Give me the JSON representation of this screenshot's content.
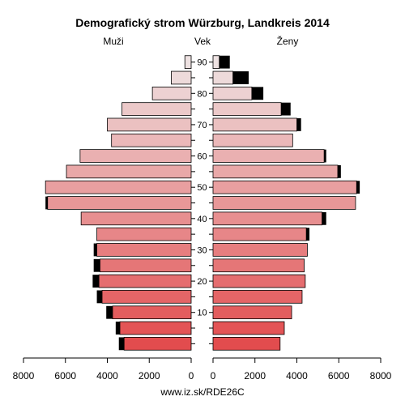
{
  "chart_data": {
    "type": "bar",
    "title": "Demografický strom Würzburg, Landkreis 2014",
    "left_label": "Muži",
    "center_label": "Vek",
    "right_label": "Ženy",
    "footer": "www.iz.sk/RDE26C",
    "xlim": [
      0,
      8000
    ],
    "x_ticks": [
      8000,
      6000,
      4000,
      2000,
      0,
      2000,
      4000,
      6000,
      8000
    ],
    "age_ticks": [
      "10",
      "20",
      "30",
      "40",
      "50",
      "60",
      "70",
      "80",
      "90"
    ],
    "age_groups_bottom_to_top": [
      "0-4",
      "5-9",
      "10-14",
      "15-19",
      "20-24",
      "25-29",
      "30-34",
      "35-39",
      "40-44",
      "45-49",
      "50-54",
      "55-59",
      "60-64",
      "65-69",
      "70-74",
      "75-79",
      "80-84",
      "85-89",
      "90+"
    ],
    "series": [
      {
        "name": "Muži",
        "values": [
          3200,
          3400,
          3750,
          4250,
          4400,
          4350,
          4500,
          4500,
          5250,
          6850,
          6950,
          5950,
          5300,
          3800,
          4000,
          3300,
          1850,
          950,
          300
        ],
        "overflow": [
          250,
          200,
          300,
          250,
          300,
          300,
          150,
          0,
          0,
          100,
          0,
          0,
          0,
          0,
          0,
          0,
          0,
          0,
          0
        ]
      },
      {
        "name": "Ženy",
        "values": [
          3200,
          3400,
          3750,
          4250,
          4400,
          4350,
          4500,
          4450,
          5200,
          6800,
          6850,
          5950,
          5300,
          3800,
          4000,
          3250,
          1850,
          950,
          300
        ],
        "overflow": [
          0,
          0,
          0,
          0,
          0,
          0,
          0,
          150,
          200,
          0,
          150,
          150,
          100,
          0,
          200,
          450,
          550,
          750,
          500
        ]
      }
    ]
  }
}
